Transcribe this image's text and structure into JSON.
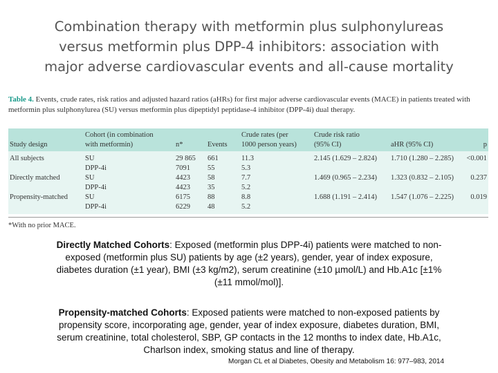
{
  "title": {
    "lines": [
      "Combination therapy with metformin plus sulphonylureas",
      "versus metformin plus DPP-4 inhibitors: association with",
      "major adverse cardiovascular events and all-cause mortality"
    ]
  },
  "table": {
    "label": "Table 4.",
    "caption_line1": "Events, crude rates, risk ratios and adjusted hazard ratios (aHRs) for first major adverse cardiovascular events (MACE) in patients treated with",
    "caption_line2": "metformin plus sulphonylurea (SU) versus metformin plus dipeptidyl peptidase-4 inhibitor (DPP-4i) dual therapy.",
    "headers": {
      "design": "Study design",
      "cohort_1": "Cohort (in combination",
      "cohort_2": "with metformin)",
      "n": "n*",
      "events": "Events",
      "crude_1": "Crude rates (per",
      "crude_2": "1000 person years)",
      "risk_1": "Crude risk ratio",
      "risk_2": "(95% CI)",
      "ahr": "aHR (95% CI)",
      "p": "p"
    },
    "rows": [
      {
        "design": "All subjects",
        "cohort": "SU",
        "n": "29 865",
        "events": "661",
        "crude": "11.3",
        "risk": "2.145 (1.629 – 2.824)",
        "ahr": "1.710 (1.280 – 2.285)",
        "p": "<0.001"
      },
      {
        "design": "",
        "cohort": "DPP-4i",
        "n": "7091",
        "events": "55",
        "crude": "5.3",
        "risk": "",
        "ahr": "",
        "p": ""
      },
      {
        "design": "Directly matched",
        "cohort": "SU",
        "n": "4423",
        "events": "58",
        "crude": "7.7",
        "risk": "1.469 (0.965 – 2.234)",
        "ahr": "1.323 (0.832 – 2.105)",
        "p": "0.237"
      },
      {
        "design": "",
        "cohort": "DPP-4i",
        "n": "4423",
        "events": "35",
        "crude": "5.2",
        "risk": "",
        "ahr": "",
        "p": ""
      },
      {
        "design": "Propensity-matched",
        "cohort": "SU",
        "n": "6175",
        "events": "88",
        "crude": "8.8",
        "risk": "1.688 (1.191 – 2.414)",
        "ahr": "1.547 (1.076 – 2.225)",
        "p": "0.019"
      },
      {
        "design": "",
        "cohort": "DPP-4i",
        "n": "6229",
        "events": "48",
        "crude": "5.2",
        "risk": "",
        "ahr": "",
        "p": ""
      }
    ],
    "footnote": "*With no prior MACE."
  },
  "directly_matched": {
    "heading": "Directly Matched Cohorts",
    "line1": ": Exposed (metformin plus DPP-4i) patients were matched to non-",
    "line2": "exposed (metformin plus SU) patients by age (±2 years), gender, year of index exposure,",
    "line3": "diabetes duration (±1 year), BMI (±3 kg/m2), serum creatinine (±10 µmol/L) and Hb.A1c [±1%",
    "line4": "(±11 mmol/mol)]."
  },
  "propensity_matched": {
    "heading": "Propensity-matched Cohorts",
    "line1": ": Exposed patients were matched to non-exposed patients by",
    "line2": "propensity score, incorporating age, gender, year of index exposure, diabetes duration, BMI,",
    "line3": "serum creatinine, total cholesterol, SBP, GP contacts in the 12 months to index date, Hb.A1c,",
    "line4": "Charlson index, smoking status and line of therapy."
  },
  "citation": "Morgan CL et al Diabetes, Obesity and Metabolism 16: 977–983, 2014",
  "colors": {
    "header_band": "#b9e3db",
    "body_band": "#e7f5f2",
    "table_label": "#1a9a8a",
    "title_text": "#555555"
  }
}
